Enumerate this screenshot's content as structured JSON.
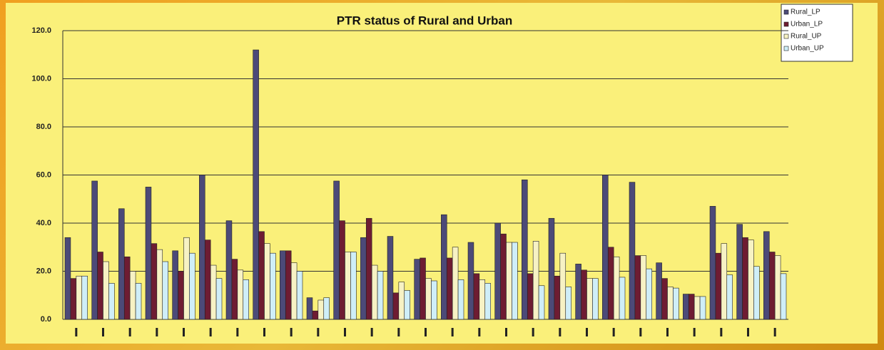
{
  "chart_data": {
    "type": "bar",
    "title": "PTR status of Rural and Urban",
    "categories": [
      null,
      null,
      null,
      null,
      null,
      null,
      null,
      null,
      null,
      null,
      null,
      null,
      null,
      null,
      null,
      null,
      null,
      null,
      null,
      null,
      null,
      null,
      null,
      null,
      null,
      null,
      null
    ],
    "series": [
      {
        "name": "Rural_LP",
        "color": "#4c4a78",
        "values": [
          34,
          57.5,
          46,
          55,
          28.5,
          60,
          41,
          112,
          28.5,
          9,
          57.5,
          34,
          34.5,
          25,
          43.5,
          32,
          40,
          58,
          42,
          23,
          60,
          57,
          23.5,
          10.5,
          47,
          39.5,
          36.5
        ]
      },
      {
        "name": "Urban_LP",
        "color": "#6e1c32",
        "values": [
          17,
          28,
          26,
          31.5,
          20,
          33,
          25,
          36.5,
          28.5,
          3.5,
          41,
          42,
          11,
          25.5,
          25.5,
          19,
          35.5,
          19,
          18,
          20.5,
          30,
          26.5,
          17,
          10.5,
          27.5,
          34,
          28
        ]
      },
      {
        "name": "Rural_UP",
        "color": "#f7f2c4",
        "values": [
          18,
          24,
          20,
          29,
          34,
          22.5,
          20.5,
          31.5,
          23.5,
          8,
          28,
          22.5,
          15.5,
          17,
          30,
          16.5,
          32,
          32.5,
          27.5,
          17,
          26,
          26.5,
          13.5,
          9.5,
          31.5,
          33,
          26.5
        ]
      },
      {
        "name": "Urban_UP",
        "color": "#cfeef8",
        "values": [
          18,
          15,
          15,
          24,
          27.5,
          17,
          16.5,
          27.5,
          20,
          9,
          28,
          20,
          12,
          16,
          16.5,
          15,
          32,
          14,
          13.5,
          17,
          17.5,
          21,
          13,
          9.5,
          18.5,
          22,
          19
        ]
      }
    ],
    "ylim": [
      0,
      120
    ],
    "yticks": [
      {
        "value": 0,
        "label": "0.0"
      },
      {
        "value": 20,
        "label": "20.0"
      },
      {
        "value": 40,
        "label": "40.0"
      },
      {
        "value": 60,
        "label": "60.0"
      },
      {
        "value": 80,
        "label": "80.0"
      },
      {
        "value": 100,
        "label": "100.0"
      },
      {
        "value": 120,
        "label": "120.0"
      }
    ],
    "grid": true,
    "legend": "top-right"
  }
}
